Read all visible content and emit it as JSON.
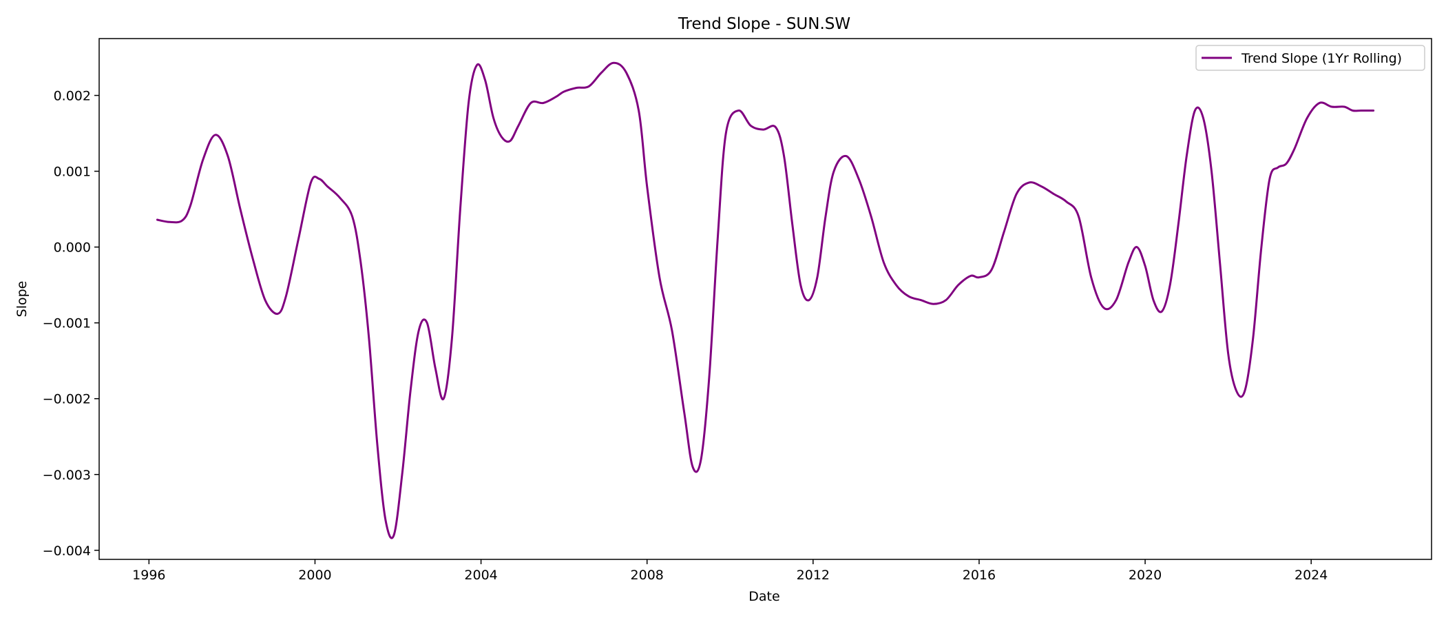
{
  "chart_data": {
    "type": "line",
    "title": "Trend Slope - SUN.SW",
    "xlabel": "Date",
    "ylabel": "Slope",
    "xlim": [
      1994.8,
      2026.9
    ],
    "ylim": [
      -0.00412,
      0.00275
    ],
    "grid": false,
    "legend_position": "top-right",
    "line_color": "#800080",
    "x_ticks": [
      1996,
      2000,
      2004,
      2008,
      2012,
      2016,
      2020,
      2024
    ],
    "x_tick_labels": [
      "1996",
      "2000",
      "2004",
      "2008",
      "2012",
      "2016",
      "2020",
      "2024"
    ],
    "y_ticks": [
      -0.004,
      -0.003,
      -0.002,
      -0.001,
      0.0,
      0.001,
      0.002
    ],
    "y_tick_labels": [
      "−0.004",
      "−0.003",
      "−0.002",
      "−0.001",
      "0.000",
      "0.001",
      "0.002"
    ],
    "series": [
      {
        "name": "Trend Slope (1Yr Rolling)",
        "x": [
          1996.2,
          1996.5,
          1996.8,
          1997.0,
          1997.3,
          1997.6,
          1997.9,
          1998.2,
          1998.5,
          1998.8,
          1999.1,
          1999.3,
          1999.6,
          1999.9,
          2000.1,
          2000.3,
          2000.6,
          2000.9,
          2001.1,
          2001.3,
          2001.5,
          2001.7,
          2001.9,
          2002.1,
          2002.3,
          2002.5,
          2002.7,
          2002.9,
          2003.1,
          2003.3,
          2003.5,
          2003.7,
          2003.9,
          2004.1,
          2004.3,
          2004.5,
          2004.7,
          2004.9,
          2005.2,
          2005.5,
          2005.8,
          2006.0,
          2006.3,
          2006.6,
          2006.9,
          2007.2,
          2007.5,
          2007.8,
          2008.0,
          2008.3,
          2008.6,
          2008.9,
          2009.1,
          2009.3,
          2009.5,
          2009.7,
          2009.9,
          2010.2,
          2010.5,
          2010.8,
          2011.1,
          2011.3,
          2011.5,
          2011.7,
          2011.9,
          2012.1,
          2012.3,
          2012.5,
          2012.8,
          2013.1,
          2013.4,
          2013.7,
          2014.0,
          2014.3,
          2014.6,
          2014.9,
          2015.2,
          2015.5,
          2015.8,
          2016.0,
          2016.3,
          2016.6,
          2016.9,
          2017.2,
          2017.5,
          2017.8,
          2018.1,
          2018.4,
          2018.7,
          2019.0,
          2019.3,
          2019.6,
          2019.8,
          2020.0,
          2020.2,
          2020.4,
          2020.6,
          2020.8,
          2021.0,
          2021.2,
          2021.4,
          2021.6,
          2021.8,
          2022.0,
          2022.2,
          2022.4,
          2022.6,
          2022.8,
          2023.0,
          2023.2,
          2023.4,
          2023.6,
          2023.9,
          2024.2,
          2024.5,
          2024.8,
          2025.0,
          2025.2,
          2025.5
        ],
        "y": [
          0.00036,
          0.00033,
          0.00035,
          0.00055,
          0.00115,
          0.00148,
          0.0012,
          0.0005,
          -0.00015,
          -0.0007,
          -0.00088,
          -0.00065,
          0.0001,
          0.00085,
          0.0009,
          0.0008,
          0.00065,
          0.0004,
          -0.0002,
          -0.0012,
          -0.0026,
          -0.0036,
          -0.0038,
          -0.003,
          -0.0019,
          -0.0011,
          -0.001,
          -0.0016,
          -0.002,
          -0.0012,
          0.0005,
          0.0019,
          0.0024,
          0.0022,
          0.0017,
          0.00145,
          0.0014,
          0.0016,
          0.0019,
          0.0019,
          0.00198,
          0.00205,
          0.0021,
          0.00212,
          0.0023,
          0.00243,
          0.0023,
          0.0018,
          0.0008,
          -0.0004,
          -0.0011,
          -0.0022,
          -0.0029,
          -0.0028,
          -0.0017,
          0.0001,
          0.0015,
          0.0018,
          0.0016,
          0.00155,
          0.00158,
          0.0012,
          0.0003,
          -0.0005,
          -0.0007,
          -0.0004,
          0.0004,
          0.001,
          0.0012,
          0.0009,
          0.0004,
          -0.0002,
          -0.0005,
          -0.00065,
          -0.0007,
          -0.00075,
          -0.0007,
          -0.0005,
          -0.00038,
          -0.0004,
          -0.0003,
          0.0002,
          0.0007,
          0.00085,
          0.0008,
          0.0007,
          0.0006,
          0.0004,
          -0.0004,
          -0.0008,
          -0.0007,
          -0.0002,
          0.0,
          -0.00025,
          -0.0007,
          -0.00085,
          -0.0005,
          0.0003,
          0.0012,
          0.0018,
          0.0017,
          0.001,
          -0.0002,
          -0.0014,
          -0.0019,
          -0.0019,
          -0.0012,
          0.0,
          0.0009,
          0.00105,
          0.0011,
          0.0013,
          0.0017,
          0.0019,
          0.00185,
          0.00185,
          0.0018,
          0.0018,
          0.0018
        ]
      }
    ]
  }
}
